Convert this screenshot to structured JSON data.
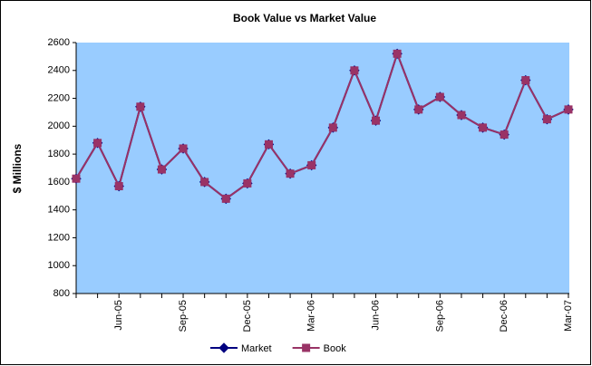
{
  "chart_data": {
    "type": "line",
    "title": "Book Value vs Market Value",
    "y_label": "$ Millions",
    "categories": [
      null,
      null,
      "Jun-05",
      null,
      null,
      "Sep-05",
      null,
      null,
      "Dec-05",
      null,
      null,
      "Mar-06",
      null,
      null,
      "Jun-06",
      null,
      null,
      "Sep-06",
      null,
      null,
      "Dec-06",
      null,
      null,
      "Mar-07"
    ],
    "series": [
      {
        "name": "Market",
        "color": "#000080",
        "marker": "diamond",
        "values": [
          1624,
          1880,
          1570,
          2140,
          1690,
          1840,
          1600,
          1480,
          1590,
          1870,
          1660,
          1720,
          1990,
          2400,
          2040,
          2520,
          2120,
          2210,
          2080,
          1990,
          1940,
          2330,
          2050,
          2120
        ]
      },
      {
        "name": "Book",
        "color": "#993366",
        "marker": "square",
        "values": [
          1624,
          1880,
          1570,
          2140,
          1690,
          1840,
          1600,
          1480,
          1590,
          1870,
          1660,
          1720,
          1990,
          2400,
          2040,
          2520,
          2120,
          2210,
          2080,
          1990,
          1940,
          2330,
          2050,
          2120
        ]
      }
    ],
    "ylim": [
      800,
      2600
    ],
    "yticks": [
      800,
      1000,
      1200,
      1400,
      1600,
      1800,
      2000,
      2200,
      2400,
      2600
    ],
    "plot_background": "#99ccff",
    "grid": false,
    "legend": "bottom"
  }
}
